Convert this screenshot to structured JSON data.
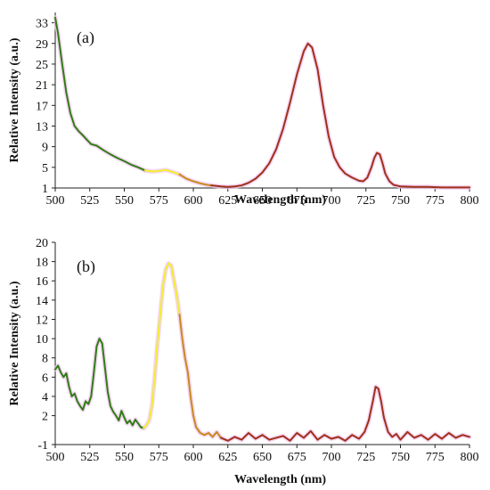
{
  "chart_data": [
    {
      "type": "line",
      "panel_label": "(a)",
      "xlabel": "Wavelength (nm)",
      "ylabel": "Relative Intensity (a.u.)",
      "xlim": [
        500,
        800
      ],
      "ylim": [
        1,
        35
      ],
      "x_ticks": [
        500,
        525,
        550,
        575,
        600,
        625,
        650,
        675,
        700,
        725,
        750,
        775,
        800
      ],
      "y_ticks": [
        1,
        5,
        9,
        13,
        17,
        21,
        25,
        29,
        33
      ],
      "grid": false,
      "legend": "none",
      "segments": [
        {
          "color": "#2e7d12",
          "x": [
            500,
            502,
            505,
            508,
            511,
            514,
            517,
            520,
            523,
            526,
            530,
            535,
            540,
            545,
            550,
            555,
            560,
            565
          ],
          "y": [
            34,
            31,
            25,
            19.5,
            15.5,
            13,
            12,
            11.2,
            10.3,
            9.5,
            9.2,
            8.3,
            7.5,
            6.8,
            6.2,
            5.5,
            5,
            4.4
          ]
        },
        {
          "color": "#f2ef2a",
          "x": [
            565,
            570,
            575,
            580,
            585,
            590
          ],
          "y": [
            4.4,
            4.2,
            4.3,
            4.5,
            4.1,
            3.6
          ]
        },
        {
          "color": "#c88a1c",
          "x": [
            590,
            595,
            600,
            605,
            610,
            613
          ],
          "y": [
            3.6,
            2.8,
            2.3,
            1.9,
            1.6,
            1.5
          ]
        },
        {
          "color": "#a0301a",
          "x": [
            613,
            620,
            625,
            630,
            635,
            640,
            645,
            650,
            655,
            660,
            665,
            670,
            675,
            680,
            683,
            686,
            690,
            694,
            698,
            702,
            706,
            710,
            715,
            720,
            723,
            726,
            729,
            731,
            733,
            735,
            737,
            739,
            742,
            745,
            750,
            760,
            770,
            780,
            790,
            800
          ],
          "y": [
            1.5,
            1.3,
            1.2,
            1.3,
            1.5,
            2,
            2.8,
            4,
            5.8,
            8.5,
            12.5,
            17.5,
            23,
            27.5,
            29,
            28.2,
            24,
            17,
            11,
            7,
            5,
            3.8,
            3,
            2.4,
            2.3,
            3,
            5,
            6.8,
            7.8,
            7.5,
            5.8,
            3.8,
            2.3,
            1.6,
            1.3,
            1.2,
            1.2,
            1.1,
            1.1,
            1.1
          ]
        }
      ]
    },
    {
      "type": "line",
      "panel_label": "(b)",
      "xlabel": "Wavelength (nm)",
      "ylabel": "Relative Intensity (a.u.)",
      "xlim": [
        500,
        800
      ],
      "ylim": [
        -1,
        20
      ],
      "x_ticks": [
        500,
        525,
        550,
        575,
        600,
        625,
        650,
        675,
        700,
        725,
        750,
        775,
        800
      ],
      "y_ticks": [
        -1,
        2,
        4,
        6,
        8,
        10,
        12,
        14,
        16,
        18,
        20
      ],
      "grid": false,
      "legend": "none",
      "segments": [
        {
          "color": "#2e7d12",
          "x": [
            500,
            502,
            504,
            506,
            508,
            510,
            512,
            514,
            516,
            518,
            520,
            522,
            524,
            526,
            528,
            530,
            532,
            534,
            536,
            538,
            540,
            542,
            544,
            546,
            548,
            550,
            552,
            554,
            556,
            558,
            560,
            562,
            564
          ],
          "y": [
            6.8,
            7.2,
            6.5,
            6.0,
            6.4,
            5.0,
            4.0,
            4.3,
            3.5,
            3.0,
            2.6,
            3.5,
            3.2,
            4.0,
            6.5,
            9.2,
            10.0,
            9.5,
            7.0,
            4.5,
            3.0,
            2.4,
            2.0,
            1.5,
            2.5,
            1.8,
            1.2,
            1.5,
            1.0,
            1.6,
            1.2,
            0.8,
            0.7
          ]
        },
        {
          "color": "#f2ef2a",
          "x": [
            564,
            566,
            568,
            570,
            572,
            574,
            576,
            578,
            580,
            582,
            584,
            586,
            588,
            590
          ],
          "y": [
            0.7,
            1.0,
            1.5,
            3.0,
            6.0,
            9.5,
            12.5,
            15.5,
            17.2,
            17.8,
            17.6,
            16.0,
            14.5,
            12.5
          ]
        },
        {
          "color": "#c88a1c",
          "x": [
            590,
            592,
            594,
            596,
            598,
            600,
            602,
            605,
            608,
            611,
            614,
            617,
            620
          ],
          "y": [
            12.5,
            10.0,
            8.0,
            6.5,
            4.0,
            2.0,
            0.8,
            0.2,
            0.0,
            0.2,
            -0.2,
            0.3,
            -0.3
          ]
        },
        {
          "color": "#a0301a",
          "x": [
            620,
            625,
            630,
            635,
            640,
            645,
            650,
            655,
            660,
            665,
            670,
            675,
            680,
            685,
            690,
            695,
            700,
            705,
            710,
            715,
            720,
            724,
            727,
            730,
            732,
            734,
            736,
            738,
            741,
            744,
            747,
            750,
            755,
            760,
            765,
            770,
            775,
            780,
            785,
            790,
            795,
            800
          ],
          "y": [
            -0.3,
            -0.6,
            -0.2,
            -0.5,
            0.2,
            -0.4,
            0.0,
            -0.5,
            -0.3,
            -0.1,
            -0.6,
            0.2,
            -0.3,
            0.4,
            -0.5,
            0.0,
            -0.4,
            -0.2,
            -0.6,
            0.0,
            -0.4,
            0.3,
            1.5,
            3.5,
            5.0,
            4.8,
            3.5,
            1.8,
            0.3,
            -0.2,
            0.1,
            -0.5,
            0.3,
            -0.3,
            0.0,
            -0.5,
            0.1,
            -0.4,
            0.2,
            -0.3,
            0.0,
            -0.2
          ]
        }
      ]
    }
  ]
}
